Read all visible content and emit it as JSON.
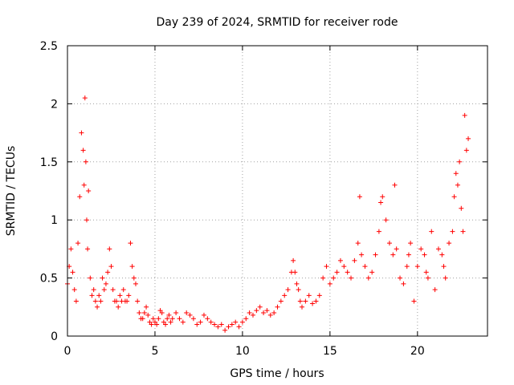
{
  "chart_data": {
    "type": "scatter",
    "title": "Day 239 of 2024, SRMTID for receiver rode",
    "xlabel": "GPS time / hours",
    "ylabel": "SRMTID / TECUs",
    "xlim": [
      0,
      24
    ],
    "ylim": [
      0,
      2.5
    ],
    "xticks": [
      0,
      5,
      10,
      15,
      20
    ],
    "yticks": [
      0,
      0.5,
      1,
      1.5,
      2,
      2.5
    ],
    "xtick_labels": [
      "0",
      "5",
      "10",
      "15",
      "20"
    ],
    "ytick_labels": [
      "0",
      "0.5",
      "1",
      "1.5",
      "2",
      "2.5"
    ],
    "grid": true,
    "marker": "+",
    "color": "#ff0000",
    "series": [
      {
        "name": "SRMTID",
        "x": [
          0.0,
          0.1,
          0.2,
          0.3,
          0.4,
          0.5,
          0.6,
          0.7,
          0.8,
          0.9,
          0.95,
          1.0,
          1.05,
          1.1,
          1.15,
          1.2,
          1.3,
          1.4,
          1.5,
          1.6,
          1.7,
          1.8,
          1.9,
          2.0,
          2.1,
          2.2,
          2.3,
          2.4,
          2.5,
          2.6,
          2.7,
          2.8,
          2.9,
          3.0,
          3.1,
          3.2,
          3.3,
          3.4,
          3.5,
          3.6,
          3.7,
          3.8,
          3.9,
          4.0,
          4.1,
          4.2,
          4.3,
          4.4,
          4.5,
          4.6,
          4.7,
          4.8,
          4.9,
          5.0,
          5.1,
          5.2,
          5.3,
          5.4,
          5.5,
          5.6,
          5.7,
          5.8,
          5.9,
          6.0,
          6.2,
          6.4,
          6.6,
          6.8,
          7.0,
          7.2,
          7.4,
          7.6,
          7.8,
          8.0,
          8.2,
          8.4,
          8.6,
          8.8,
          9.0,
          9.2,
          9.4,
          9.6,
          9.8,
          10.0,
          10.2,
          10.4,
          10.6,
          10.8,
          11.0,
          11.2,
          11.4,
          11.6,
          11.8,
          12.0,
          12.2,
          12.4,
          12.6,
          12.8,
          12.9,
          13.0,
          13.1,
          13.2,
          13.3,
          13.4,
          13.6,
          13.8,
          14.0,
          14.2,
          14.4,
          14.6,
          14.8,
          15.0,
          15.2,
          15.4,
          15.6,
          15.8,
          16.0,
          16.2,
          16.4,
          16.6,
          16.7,
          16.8,
          17.0,
          17.2,
          17.4,
          17.6,
          17.8,
          17.9,
          18.0,
          18.2,
          18.4,
          18.6,
          18.7,
          18.8,
          19.0,
          19.2,
          19.4,
          19.5,
          19.6,
          19.8,
          20.0,
          20.2,
          20.4,
          20.5,
          20.6,
          20.8,
          21.0,
          21.2,
          21.4,
          21.5,
          21.6,
          21.8,
          22.0,
          22.1,
          22.2,
          22.3,
          22.4,
          22.5,
          22.6,
          22.7,
          22.8,
          22.9
        ],
        "y": [
          0.45,
          0.6,
          0.75,
          0.55,
          0.4,
          0.3,
          0.8,
          1.2,
          1.75,
          1.6,
          1.3,
          2.05,
          1.5,
          1.0,
          0.75,
          1.25,
          0.5,
          0.35,
          0.4,
          0.3,
          0.25,
          0.35,
          0.3,
          0.5,
          0.4,
          0.45,
          0.55,
          0.75,
          0.6,
          0.4,
          0.3,
          0.3,
          0.25,
          0.35,
          0.3,
          0.4,
          0.3,
          0.3,
          0.35,
          0.8,
          0.6,
          0.5,
          0.45,
          0.3,
          0.2,
          0.15,
          0.15,
          0.2,
          0.25,
          0.18,
          0.12,
          0.1,
          0.15,
          0.12,
          0.1,
          0.15,
          0.22,
          0.2,
          0.12,
          0.1,
          0.15,
          0.18,
          0.12,
          0.15,
          0.2,
          0.15,
          0.12,
          0.2,
          0.18,
          0.15,
          0.1,
          0.12,
          0.18,
          0.15,
          0.12,
          0.1,
          0.08,
          0.1,
          0.05,
          0.08,
          0.1,
          0.12,
          0.08,
          0.12,
          0.15,
          0.2,
          0.18,
          0.22,
          0.25,
          0.2,
          0.22,
          0.18,
          0.2,
          0.25,
          0.3,
          0.35,
          0.4,
          0.55,
          0.65,
          0.55,
          0.45,
          0.4,
          0.3,
          0.25,
          0.3,
          0.35,
          0.28,
          0.3,
          0.35,
          0.5,
          0.6,
          0.45,
          0.5,
          0.55,
          0.65,
          0.6,
          0.55,
          0.5,
          0.65,
          0.8,
          1.2,
          0.7,
          0.6,
          0.5,
          0.55,
          0.7,
          0.9,
          1.15,
          1.2,
          1.0,
          0.8,
          0.7,
          1.3,
          0.75,
          0.5,
          0.45,
          0.6,
          0.7,
          0.8,
          0.3,
          0.6,
          0.75,
          0.7,
          0.55,
          0.5,
          0.9,
          0.4,
          0.75,
          0.7,
          0.6,
          0.5,
          0.8,
          0.9,
          1.2,
          1.4,
          1.3,
          1.5,
          1.1,
          0.9,
          1.9,
          1.6,
          1.7
        ]
      }
    ]
  }
}
